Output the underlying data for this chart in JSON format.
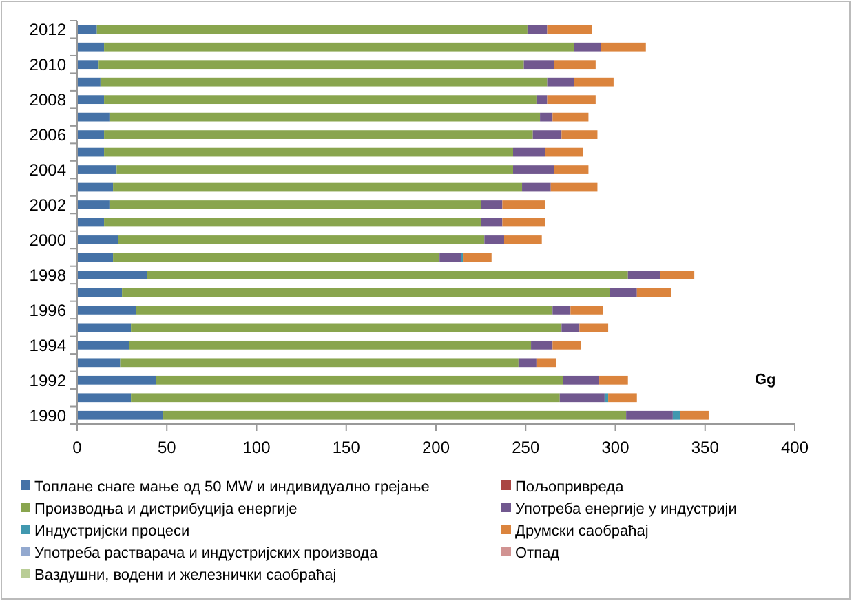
{
  "chart_data": {
    "type": "bar",
    "orientation": "horizontal",
    "stacked": true,
    "categories": [
      "2012",
      null,
      "2010",
      null,
      "2008",
      null,
      "2006",
      null,
      "2004",
      null,
      "2002",
      null,
      "2000",
      null,
      "1998",
      null,
      "1996",
      null,
      "1994",
      null,
      "1992",
      null,
      "1990"
    ],
    "series": [
      {
        "name": "Топлане снаге мање од 50 MW и индивидуално грејање",
        "color": "#4572a7",
        "values": [
          11,
          15,
          12,
          13,
          15,
          18,
          15,
          15,
          22,
          20,
          18,
          15,
          23,
          20,
          39,
          25,
          33,
          30,
          29,
          24,
          44,
          30,
          48
        ]
      },
      {
        "name": "Пољопривреда",
        "color": "#aa4643",
        "values": [
          null,
          null,
          null,
          null,
          null,
          null,
          null,
          null,
          null,
          null,
          null,
          null,
          null,
          null,
          null,
          null,
          null,
          null,
          null,
          null,
          null,
          null,
          null
        ]
      },
      {
        "name": "Производња и дистрибуција енергије",
        "color": "#89a54e",
        "values": [
          240,
          262,
          237,
          249,
          241,
          240,
          239,
          228,
          221,
          228,
          207,
          210,
          204,
          182,
          268,
          272,
          232,
          240,
          224,
          222,
          227,
          239,
          258
        ]
      },
      {
        "name": "Употреба енергије у индустрији",
        "color": "#71588f",
        "values": [
          11,
          15,
          17,
          15,
          6,
          7,
          16,
          18,
          23,
          16,
          12,
          12,
          11,
          12,
          18,
          15,
          10,
          10,
          12,
          10,
          20,
          25,
          26
        ]
      },
      {
        "name": "Индустријски процеси",
        "color": "#4198af",
        "values": [
          null,
          null,
          null,
          null,
          null,
          null,
          null,
          null,
          null,
          null,
          null,
          null,
          null,
          1,
          null,
          null,
          null,
          null,
          null,
          null,
          null,
          2,
          4
        ]
      },
      {
        "name": "Друмски саобраћај",
        "color": "#db843d",
        "values": [
          25,
          25,
          23,
          22,
          27,
          20,
          20,
          21,
          19,
          26,
          24,
          24,
          21,
          16,
          19,
          19,
          18,
          16,
          16,
          11,
          16,
          16,
          16
        ]
      },
      {
        "name": "Употреба растварача и индустријских производа",
        "color": "#93a9cf",
        "values": [
          null,
          null,
          null,
          null,
          null,
          null,
          null,
          null,
          null,
          null,
          null,
          null,
          null,
          null,
          null,
          null,
          null,
          null,
          null,
          null,
          null,
          null,
          null
        ]
      },
      {
        "name": "Отпад",
        "color": "#d19392",
        "values": [
          null,
          null,
          null,
          null,
          null,
          null,
          null,
          null,
          null,
          null,
          null,
          null,
          null,
          null,
          null,
          null,
          null,
          null,
          null,
          null,
          null,
          null,
          null
        ]
      },
      {
        "name": "Ваздушни, водени и железнички саобраћај",
        "color": "#b9cd96",
        "values": [
          null,
          null,
          null,
          null,
          null,
          null,
          null,
          null,
          null,
          null,
          null,
          null,
          null,
          null,
          null,
          null,
          null,
          null,
          null,
          null,
          null,
          null,
          null
        ]
      }
    ],
    "xlim": [
      0,
      400
    ],
    "xticks": [
      0,
      50,
      100,
      150,
      200,
      250,
      300,
      350,
      400
    ],
    "grid": false,
    "legend": "bottom",
    "annotations": [
      "Gg"
    ]
  }
}
